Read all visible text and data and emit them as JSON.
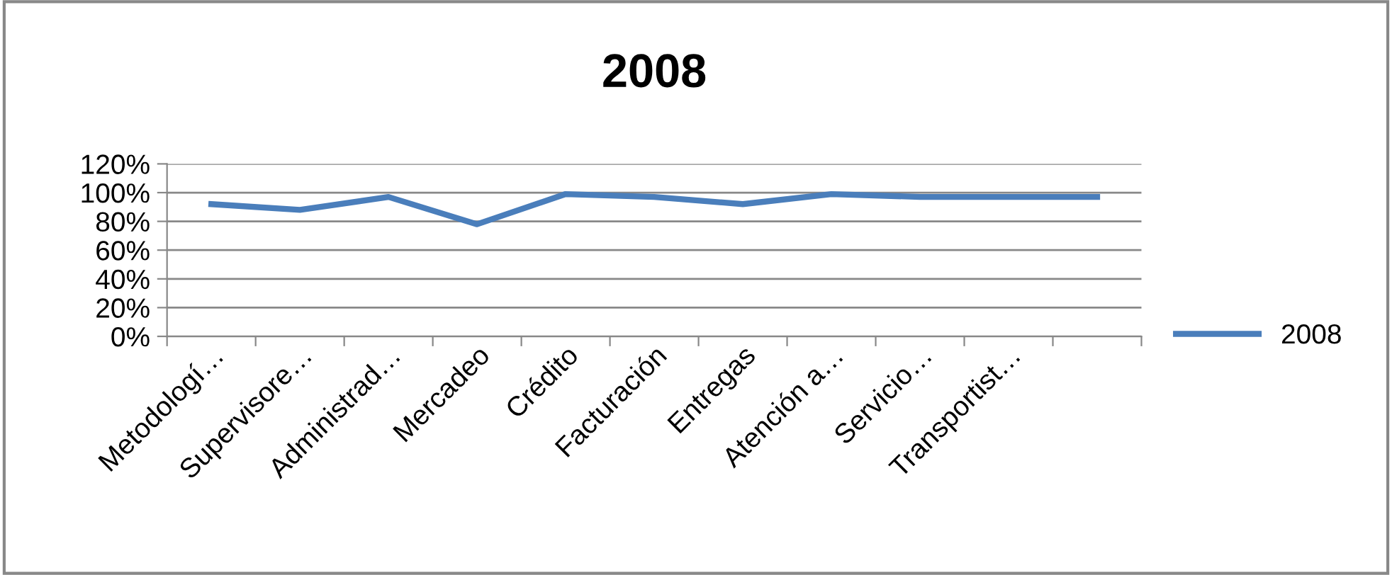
{
  "chart_data": {
    "type": "line",
    "title": "2008",
    "categories": [
      "Metodologí…",
      "Supervisore…",
      "Administrad…",
      "Mercadeo",
      "Crédito",
      "Facturación",
      "Entregas",
      "Atención a…",
      "Servicio…",
      "Transportist…",
      null
    ],
    "series": [
      {
        "name": "2008",
        "color": "#4a7ebb",
        "values": [
          92,
          88,
          97,
          78,
          99,
          97,
          92,
          99,
          97,
          97,
          97
        ]
      }
    ],
    "ylim": [
      0,
      120
    ],
    "yticks": [
      {
        "value": 0,
        "label": "0%"
      },
      {
        "value": 20,
        "label": "20%"
      },
      {
        "value": 40,
        "label": "40%"
      },
      {
        "value": 60,
        "label": "60%"
      },
      {
        "value": 80,
        "label": "80%"
      },
      {
        "value": 100,
        "label": "100%"
      },
      {
        "value": 120,
        "label": "120%"
      }
    ],
    "grid": "y",
    "legend": "bottom right",
    "marker": "none",
    "line_style": "solid"
  }
}
